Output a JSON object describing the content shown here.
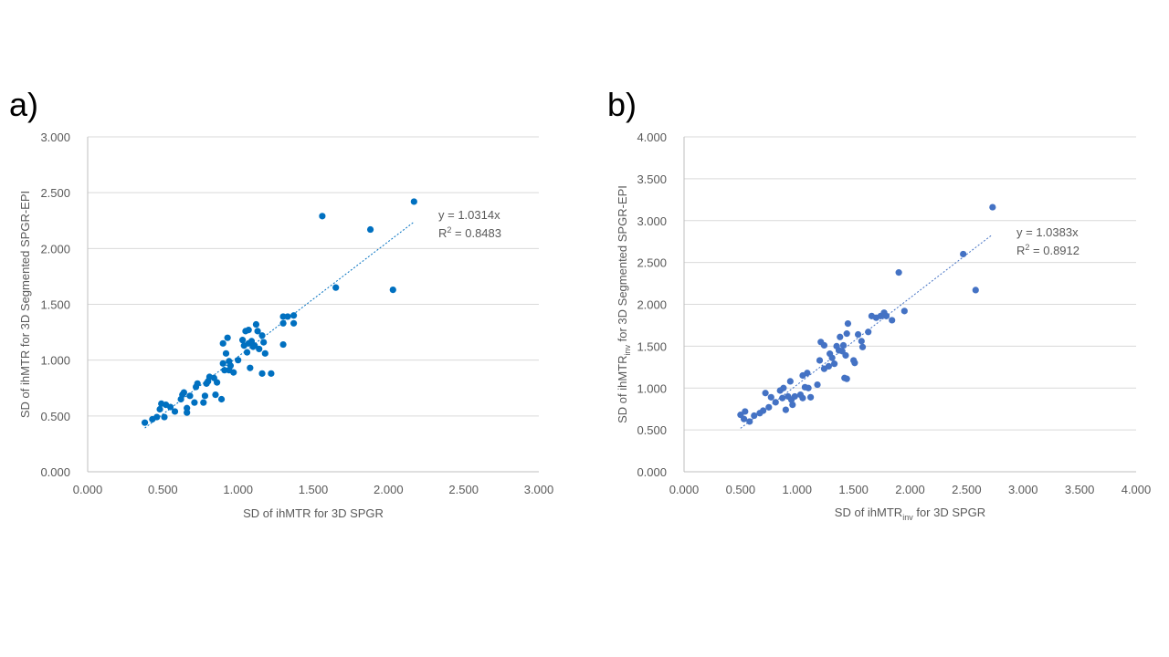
{
  "panels": {
    "a": {
      "label": "a)"
    },
    "b": {
      "label": "b)"
    }
  },
  "chart_data": [
    {
      "type": "scatter",
      "title": "",
      "xlabel": "SD of ihMTR for 3D SPGR",
      "ylabel": "SD of ihMTR for 3D Segmented SPGR-EPI",
      "xlim": [
        0,
        3
      ],
      "ylim": [
        0,
        3
      ],
      "x_ticks": [
        "0.000",
        "0.500",
        "1.000",
        "1.500",
        "2.000",
        "2.500",
        "3.000"
      ],
      "y_ticks": [
        "0.000",
        "0.500",
        "1.000",
        "1.500",
        "2.000",
        "2.500",
        "3.000"
      ],
      "grid": true,
      "trendline": {
        "type": "linear-through-origin",
        "slope": 1.0314,
        "x_range": [
          0.38,
          2.17
        ]
      },
      "equation": "y = 1.0314x",
      "r2_prefix": "R",
      "r2_sup": "2",
      "r2_value": " = 0.8483",
      "marker_color": "#0070C0",
      "points": [
        [
          0.38,
          0.44
        ],
        [
          0.43,
          0.47
        ],
        [
          0.46,
          0.49
        ],
        [
          0.48,
          0.56
        ],
        [
          0.49,
          0.61
        ],
        [
          0.51,
          0.49
        ],
        [
          0.52,
          0.6
        ],
        [
          0.55,
          0.58
        ],
        [
          0.58,
          0.54
        ],
        [
          0.62,
          0.65
        ],
        [
          0.63,
          0.69
        ],
        [
          0.64,
          0.71
        ],
        [
          0.66,
          0.57
        ],
        [
          0.66,
          0.53
        ],
        [
          0.68,
          0.68
        ],
        [
          0.71,
          0.62
        ],
        [
          0.72,
          0.76
        ],
        [
          0.73,
          0.79
        ],
        [
          0.77,
          0.62
        ],
        [
          0.78,
          0.68
        ],
        [
          0.79,
          0.79
        ],
        [
          0.8,
          0.81
        ],
        [
          0.81,
          0.85
        ],
        [
          0.84,
          0.84
        ],
        [
          0.85,
          0.69
        ],
        [
          0.86,
          0.8
        ],
        [
          0.89,
          0.65
        ],
        [
          0.9,
          1.15
        ],
        [
          0.9,
          0.97
        ],
        [
          0.91,
          0.91
        ],
        [
          0.92,
          1.06
        ],
        [
          0.93,
          1.2
        ],
        [
          0.94,
          0.99
        ],
        [
          0.94,
          0.91
        ],
        [
          0.95,
          0.95
        ],
        [
          0.97,
          0.89
        ],
        [
          1.0,
          1.0
        ],
        [
          1.03,
          1.18
        ],
        [
          1.04,
          1.13
        ],
        [
          1.05,
          1.26
        ],
        [
          1.06,
          1.07
        ],
        [
          1.07,
          1.15
        ],
        [
          1.07,
          1.27
        ],
        [
          1.08,
          0.93
        ],
        [
          1.09,
          1.17
        ],
        [
          1.1,
          1.12
        ],
        [
          1.11,
          1.13
        ],
        [
          1.12,
          1.32
        ],
        [
          1.13,
          1.26
        ],
        [
          1.14,
          1.1
        ],
        [
          1.16,
          1.22
        ],
        [
          1.17,
          1.16
        ],
        [
          1.16,
          0.88
        ],
        [
          1.18,
          1.06
        ],
        [
          1.22,
          0.88
        ],
        [
          1.3,
          1.14
        ],
        [
          1.3,
          1.33
        ],
        [
          1.3,
          1.39
        ],
        [
          1.33,
          1.39
        ],
        [
          1.37,
          1.4
        ],
        [
          1.37,
          1.33
        ],
        [
          1.56,
          2.29
        ],
        [
          1.65,
          1.65
        ],
        [
          1.88,
          2.17
        ],
        [
          2.03,
          1.63
        ],
        [
          2.17,
          2.42
        ]
      ]
    },
    {
      "type": "scatter",
      "title": "",
      "xlabel_main": "SD of ihMTR",
      "xlabel_sub": "inv",
      "xlabel_tail": " for 3D SPGR",
      "ylabel_main": "SD of ihMTR",
      "ylabel_sub": "inv",
      "ylabel_tail": " for 3D Segmented SPGR-EPI",
      "xlim": [
        0,
        4
      ],
      "ylim": [
        0,
        4
      ],
      "x_ticks": [
        "0.000",
        "0.500",
        "1.000",
        "1.500",
        "2.000",
        "2.500",
        "3.000",
        "3.500",
        "4.000"
      ],
      "y_ticks": [
        "0.000",
        "0.500",
        "1.000",
        "1.500",
        "2.000",
        "2.500",
        "3.000",
        "3.500",
        "4.000"
      ],
      "grid": true,
      "trendline": {
        "type": "linear-through-origin",
        "slope": 1.0383,
        "x_range": [
          0.5,
          2.72
        ]
      },
      "equation": "y = 1.0383x",
      "r2_prefix": "R",
      "r2_sup": "2",
      "r2_value": " = 0.8912",
      "marker_color": "#4472C4",
      "points": [
        [
          0.5,
          0.68
        ],
        [
          0.53,
          0.63
        ],
        [
          0.54,
          0.72
        ],
        [
          0.58,
          0.6
        ],
        [
          0.62,
          0.67
        ],
        [
          0.67,
          0.7
        ],
        [
          0.7,
          0.73
        ],
        [
          0.72,
          0.94
        ],
        [
          0.75,
          0.77
        ],
        [
          0.77,
          0.89
        ],
        [
          0.81,
          0.83
        ],
        [
          0.85,
          0.97
        ],
        [
          0.87,
          0.88
        ],
        [
          0.88,
          1.0
        ],
        [
          0.9,
          0.74
        ],
        [
          0.92,
          0.9
        ],
        [
          0.94,
          1.08
        ],
        [
          0.95,
          0.86
        ],
        [
          0.96,
          0.8
        ],
        [
          0.98,
          0.9
        ],
        [
          1.03,
          0.92
        ],
        [
          1.05,
          0.88
        ],
        [
          1.05,
          1.15
        ],
        [
          1.07,
          1.01
        ],
        [
          1.09,
          1.18
        ],
        [
          1.1,
          1.0
        ],
        [
          1.12,
          0.89
        ],
        [
          1.18,
          1.04
        ],
        [
          1.2,
          1.33
        ],
        [
          1.21,
          1.55
        ],
        [
          1.24,
          1.51
        ],
        [
          1.24,
          1.23
        ],
        [
          1.28,
          1.26
        ],
        [
          1.29,
          1.41
        ],
        [
          1.31,
          1.36
        ],
        [
          1.33,
          1.29
        ],
        [
          1.35,
          1.5
        ],
        [
          1.37,
          1.45
        ],
        [
          1.38,
          1.61
        ],
        [
          1.4,
          1.44
        ],
        [
          1.41,
          1.51
        ],
        [
          1.42,
          1.12
        ],
        [
          1.43,
          1.39
        ],
        [
          1.44,
          1.11
        ],
        [
          1.44,
          1.65
        ],
        [
          1.45,
          1.77
        ],
        [
          1.5,
          1.33
        ],
        [
          1.51,
          1.3
        ],
        [
          1.54,
          1.64
        ],
        [
          1.57,
          1.56
        ],
        [
          1.58,
          1.49
        ],
        [
          1.63,
          1.67
        ],
        [
          1.66,
          1.86
        ],
        [
          1.7,
          1.84
        ],
        [
          1.74,
          1.86
        ],
        [
          1.77,
          1.9
        ],
        [
          1.79,
          1.86
        ],
        [
          1.84,
          1.81
        ],
        [
          1.9,
          2.38
        ],
        [
          1.95,
          1.92
        ],
        [
          2.47,
          2.6
        ],
        [
          2.58,
          2.17
        ],
        [
          2.73,
          3.16
        ]
      ]
    }
  ]
}
